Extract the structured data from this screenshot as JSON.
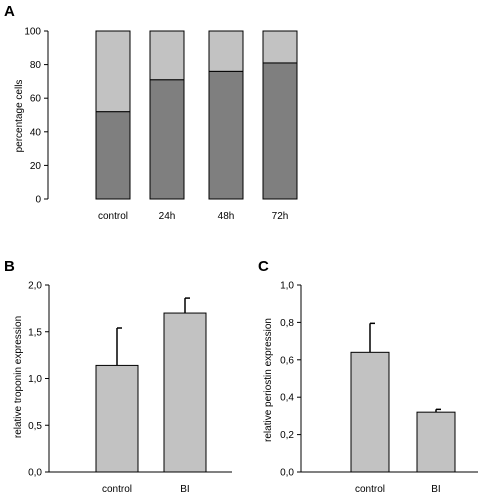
{
  "colors": {
    "dark_segment": "#7f7f7f",
    "light_segment": "#c2c2c2",
    "bar_fill": "#c2c2c2",
    "stroke": "#000000"
  },
  "chart_data": [
    {
      "panel": "A",
      "type": "bar",
      "stacked": true,
      "categories": [
        "control",
        "24h",
        "48h",
        "72h"
      ],
      "series": [
        {
          "values": [
            52,
            71,
            76,
            81
          ]
        },
        {
          "values": [
            48,
            29,
            24,
            19
          ]
        }
      ],
      "ylabel": "percentage cells",
      "ylim": [
        0,
        100
      ],
      "yticks": [
        "0",
        "20",
        "40",
        "60",
        "80",
        "100"
      ],
      "grid": false
    },
    {
      "panel": "B",
      "type": "bar",
      "categories": [
        "control",
        "BI"
      ],
      "values": [
        1.14,
        1.7
      ],
      "errors": [
        0.4,
        0.16
      ],
      "ylabel": "relative troponin expression",
      "ylim": [
        0,
        2.0
      ],
      "yticks": [
        "0,0",
        "0,5",
        "1,0",
        "1,5",
        "2,0"
      ],
      "grid": false
    },
    {
      "panel": "C",
      "type": "bar",
      "categories": [
        "control",
        "BI"
      ],
      "values": [
        0.64,
        0.32
      ],
      "errors": [
        0.155,
        0.015
      ],
      "ylabel": "relative periostin expression",
      "ylim": [
        0,
        1.0
      ],
      "yticks": [
        "0,0",
        "0,2",
        "0,4",
        "0,6",
        "0,8",
        "1,0"
      ],
      "grid": false
    }
  ]
}
